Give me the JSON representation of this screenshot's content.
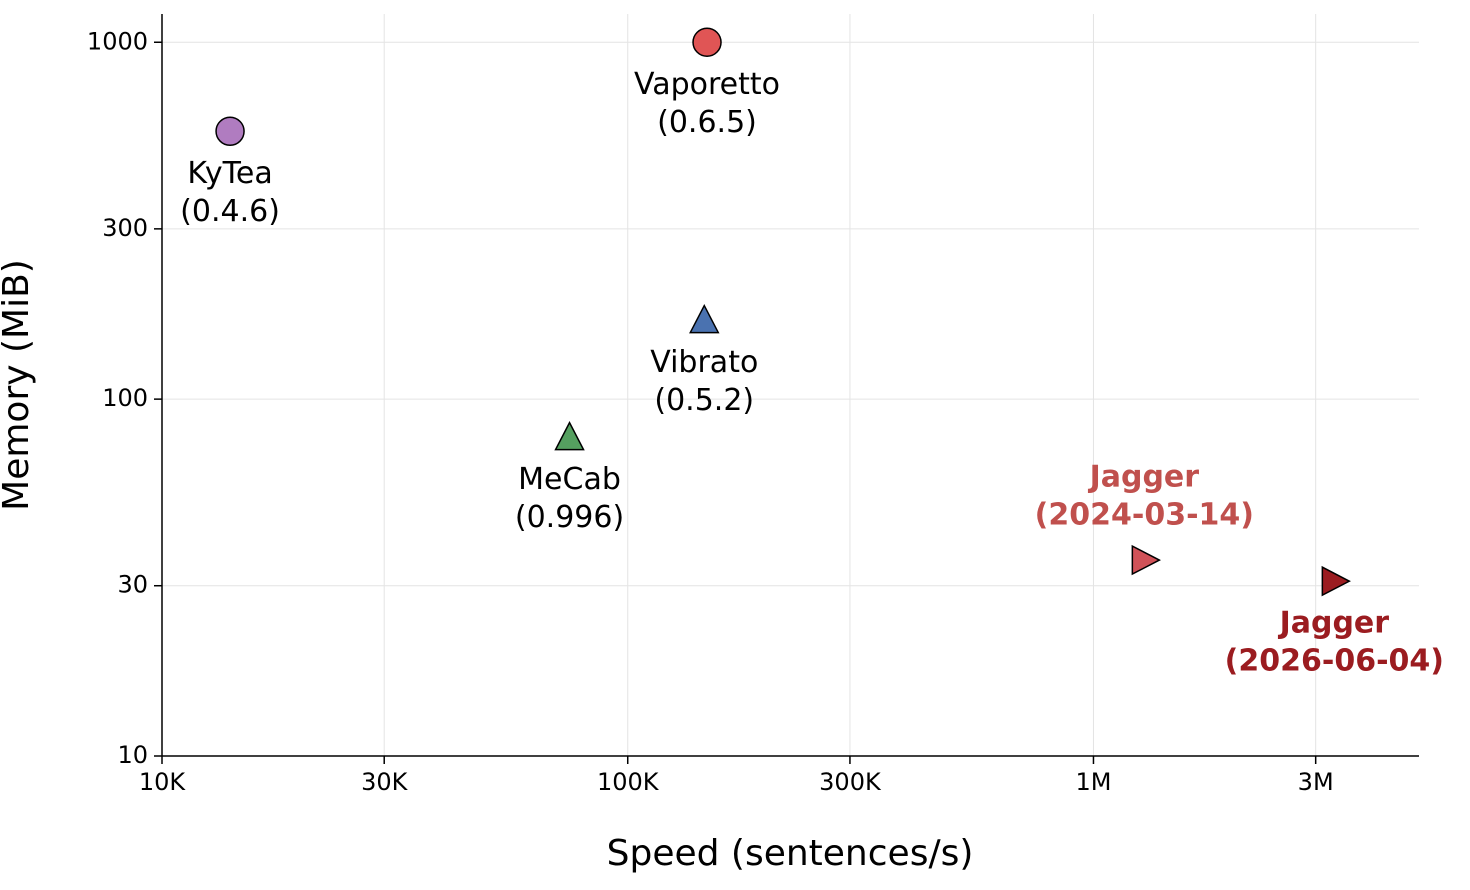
{
  "chart_data": {
    "type": "scatter",
    "x_label": "Speed (sentences/s)",
    "y_label": "Memory (MiB)",
    "x_log": true,
    "y_log": true,
    "grid": true,
    "xlim": [
      10000,
      5000000
    ],
    "ylim": [
      10,
      1200
    ],
    "xticks": [
      {
        "value": 10000,
        "label": "10K"
      },
      {
        "value": 30000,
        "label": "30K"
      },
      {
        "value": 100000,
        "label": "100K"
      },
      {
        "value": 300000,
        "label": "300K"
      },
      {
        "value": 1000000,
        "label": "1M"
      },
      {
        "value": 3000000,
        "label": "3M"
      }
    ],
    "yticks": [
      10,
      30,
      100,
      300,
      1000
    ],
    "series": [
      {
        "name": "KyTea",
        "version": "(0.4.6)",
        "color": "#b07cc0",
        "label_color": "#000000",
        "label_bold": false,
        "marker": "circle",
        "label_position": "below",
        "x": [
          14000
        ],
        "values": [
          563
        ]
      },
      {
        "name": "Vaporetto",
        "version": "(0.6.5)",
        "color": "#e05555",
        "label_color": "#000000",
        "label_bold": false,
        "marker": "circle",
        "label_position": "below",
        "x": [
          148000
        ],
        "values": [
          1000
        ]
      },
      {
        "name": "Vibrato",
        "version": "(0.5.2)",
        "color": "#4a72b0",
        "label_color": "#000000",
        "label_bold": false,
        "marker": "triangle-up",
        "label_position": "below",
        "x": [
          146000
        ],
        "values": [
          166
        ]
      },
      {
        "name": "MeCab",
        "version": "(0.996)",
        "color": "#55a060",
        "label_color": "#000000",
        "label_bold": false,
        "marker": "triangle-up",
        "label_position": "below",
        "x": [
          75000
        ],
        "values": [
          78
        ]
      },
      {
        "name": "Jagger",
        "version": "(2024-03-14)",
        "color": "#d05258",
        "label_color": "#c0504d",
        "label_bold": true,
        "marker": "triangle-right",
        "label_position": "above",
        "x": [
          1286000
        ],
        "values": [
          35.4
        ]
      },
      {
        "name": "Jagger",
        "version": "(2026-06-04)",
        "color": "#9b1c20",
        "label_color": "#9b1c20",
        "label_bold": true,
        "marker": "triangle-right",
        "label_position": "below",
        "x": [
          3290000
        ],
        "values": [
          30.9
        ]
      }
    ]
  }
}
